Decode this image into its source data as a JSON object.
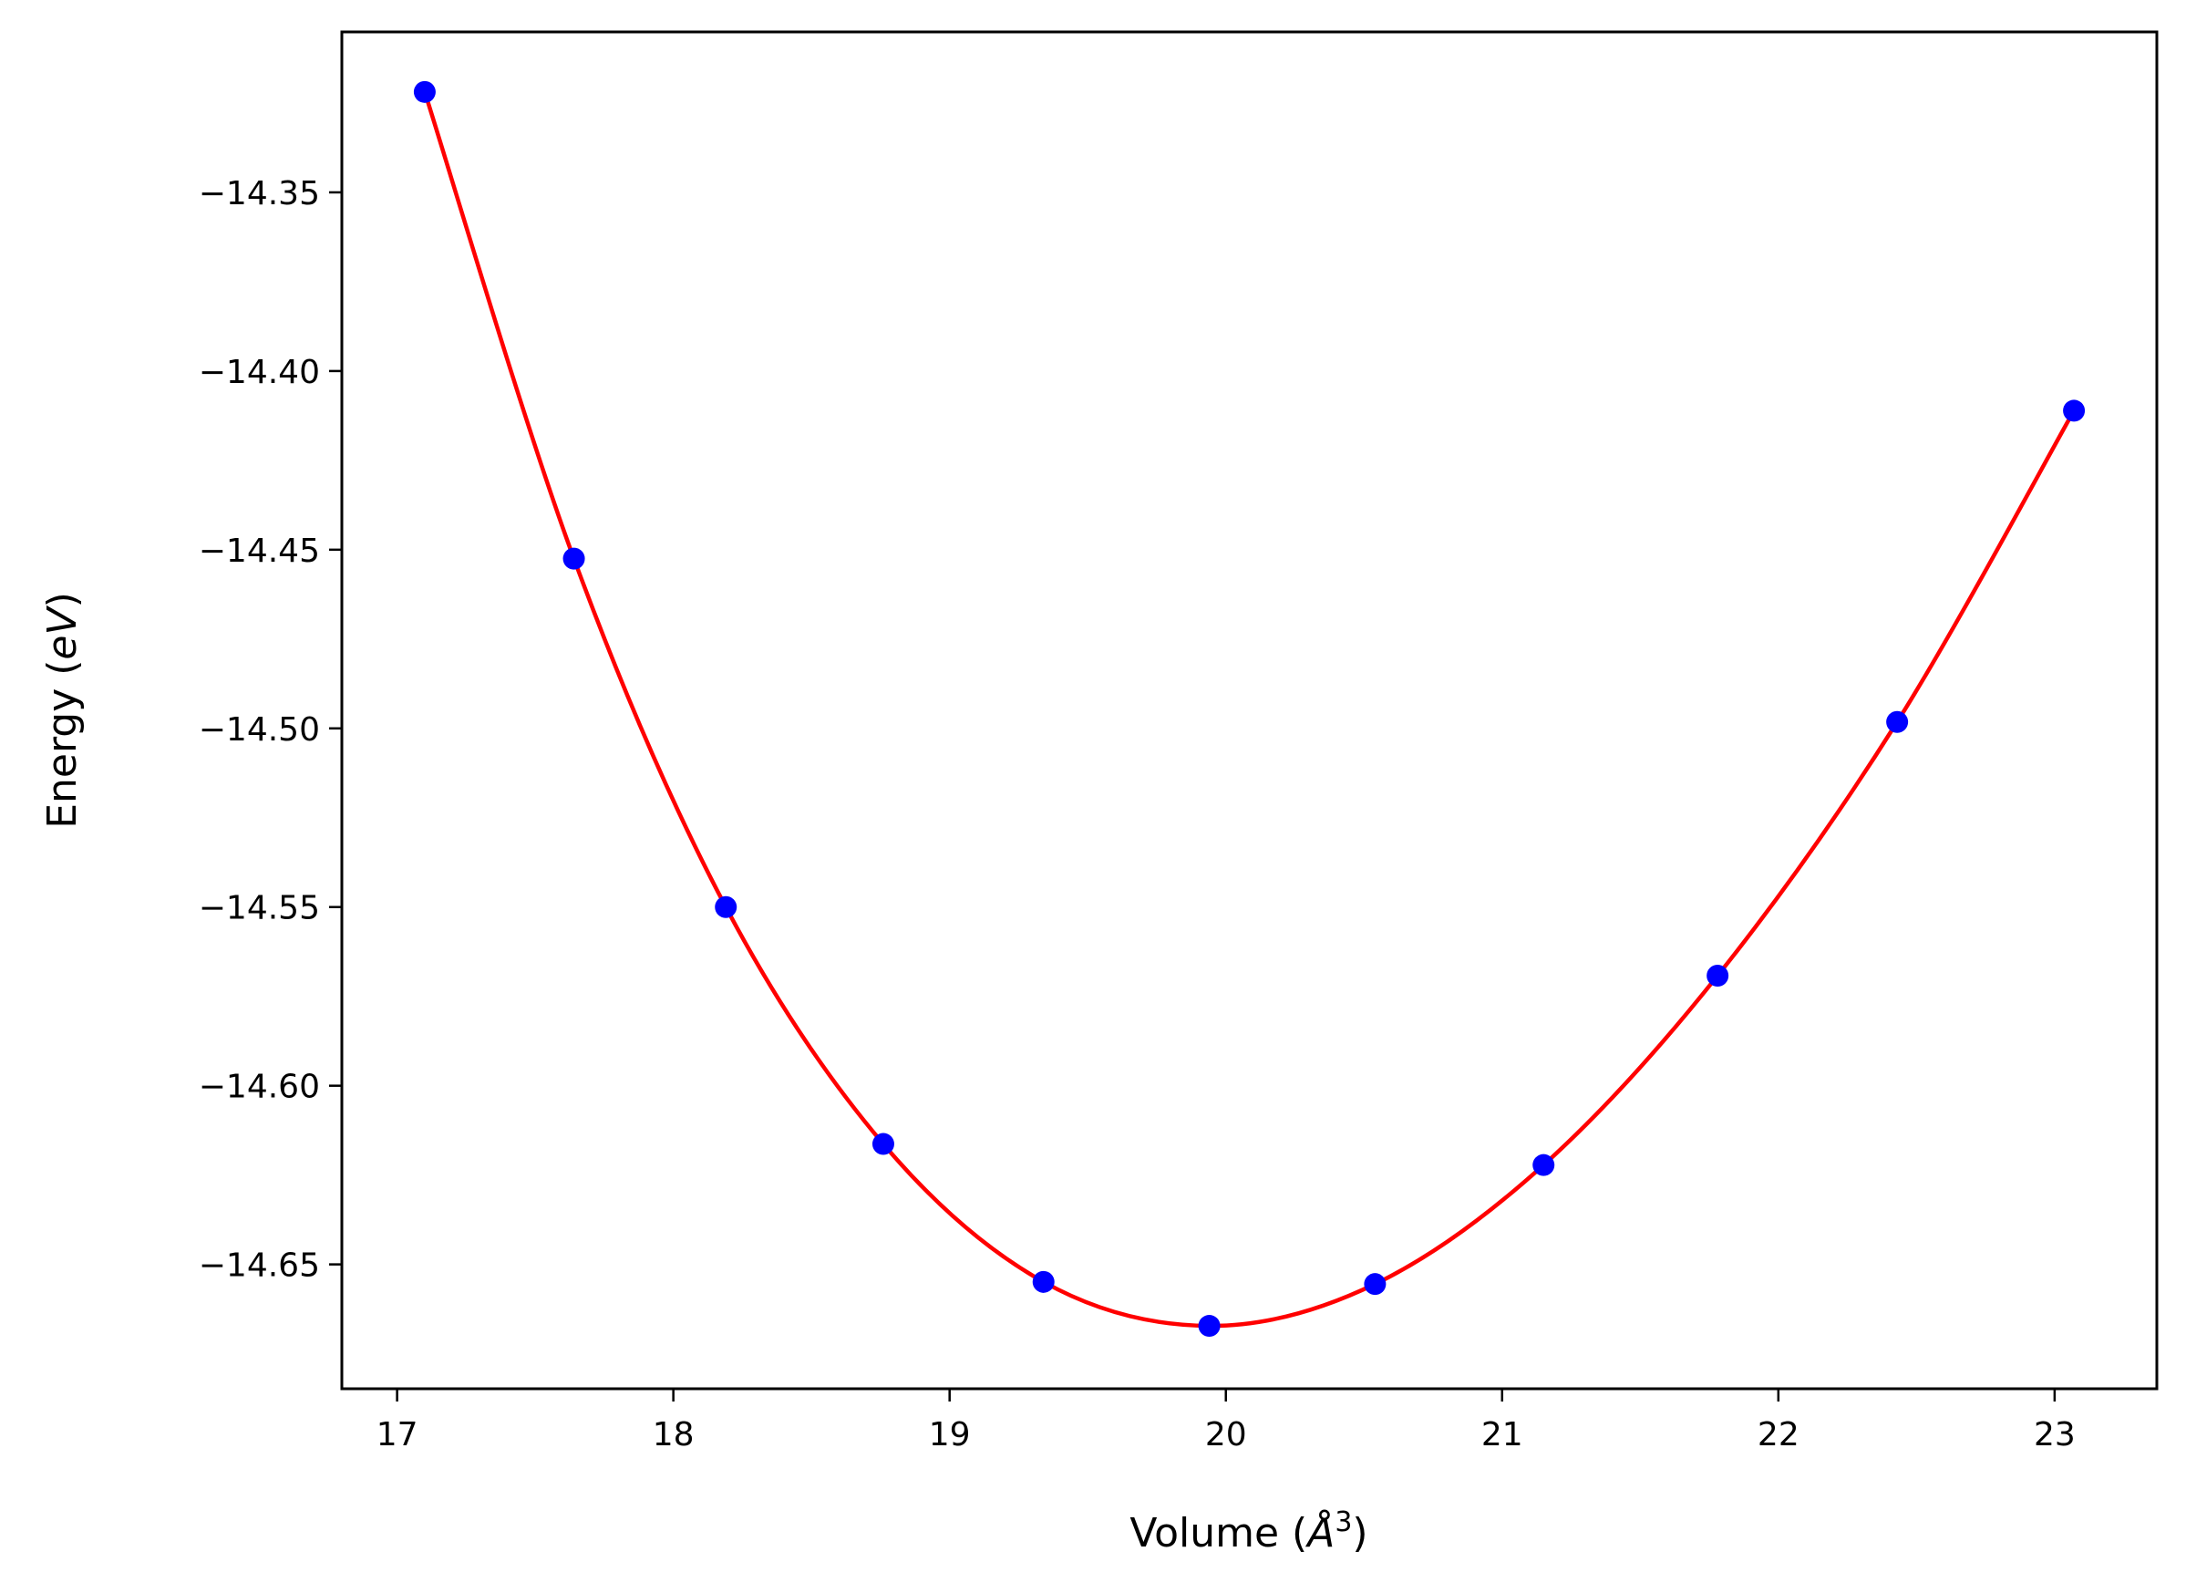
{
  "chart_data": {
    "type": "scatter",
    "title": "",
    "xlabel_parts": {
      "prefix": "Volume (",
      "symbol": "Å",
      "power": "3",
      "suffix": ")"
    },
    "ylabel_parts": {
      "prefix": "Energy (",
      "unit": "eV",
      "suffix": ")"
    },
    "xlim": [
      16.8,
      23.37
    ],
    "ylim": [
      -14.6848,
      -14.3051
    ],
    "x_ticks": [
      17,
      18,
      19,
      20,
      21,
      22,
      23
    ],
    "x_tick_labels": [
      "17",
      "18",
      "19",
      "20",
      "21",
      "22",
      "23"
    ],
    "y_ticks": [
      -14.35,
      -14.4,
      -14.45,
      -14.5,
      -14.55,
      -14.6,
      -14.65
    ],
    "y_tick_labels": [
      "−14.35",
      "−14.40",
      "−14.45",
      "−14.50",
      "−14.55",
      "−14.60",
      "−14.65"
    ],
    "grid": false,
    "series": [
      {
        "kind": "points",
        "color": "#0000ff",
        "x": [
          17.1,
          17.64,
          18.19,
          18.76,
          19.34,
          19.94,
          20.54,
          21.15,
          21.78,
          22.43,
          23.07
        ],
        "y": [
          -14.3219,
          -14.4525,
          -14.55,
          -14.6163,
          -14.6549,
          -14.6672,
          -14.6555,
          -14.6222,
          -14.5692,
          -14.4982,
          -14.4111
        ]
      },
      {
        "kind": "fit-curve",
        "color": "#ff0000"
      }
    ]
  }
}
